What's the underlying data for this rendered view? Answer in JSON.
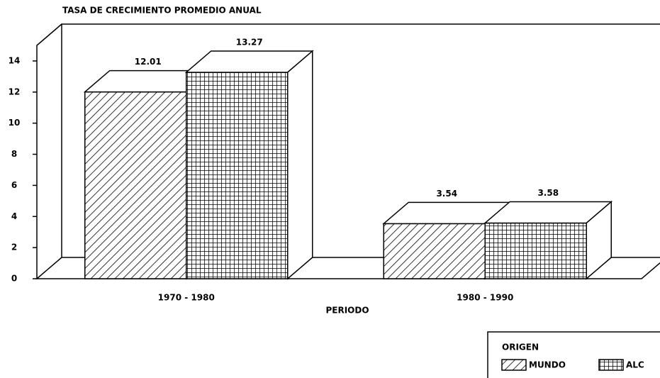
{
  "chart_data": {
    "type": "bar3d",
    "title": "TASA DE CRECIMIENTO PROMEDIO ANUAL",
    "xlabel": "PERIODO",
    "categories": [
      "1970 - 1980",
      "1980 - 1990"
    ],
    "series": [
      {
        "name": "MUNDO",
        "color": "#000000",
        "pattern": "hatch",
        "values": [
          12.01,
          3.54
        ]
      },
      {
        "name": "ALC",
        "color": "#000000",
        "pattern": "grid",
        "values": [
          13.27,
          3.58
        ]
      }
    ],
    "legend_title": "ORIGEN",
    "ylim": [
      0,
      15
    ],
    "yticks": [
      0,
      2,
      4,
      6,
      8,
      10,
      12,
      14
    ],
    "legend": "lower right"
  }
}
